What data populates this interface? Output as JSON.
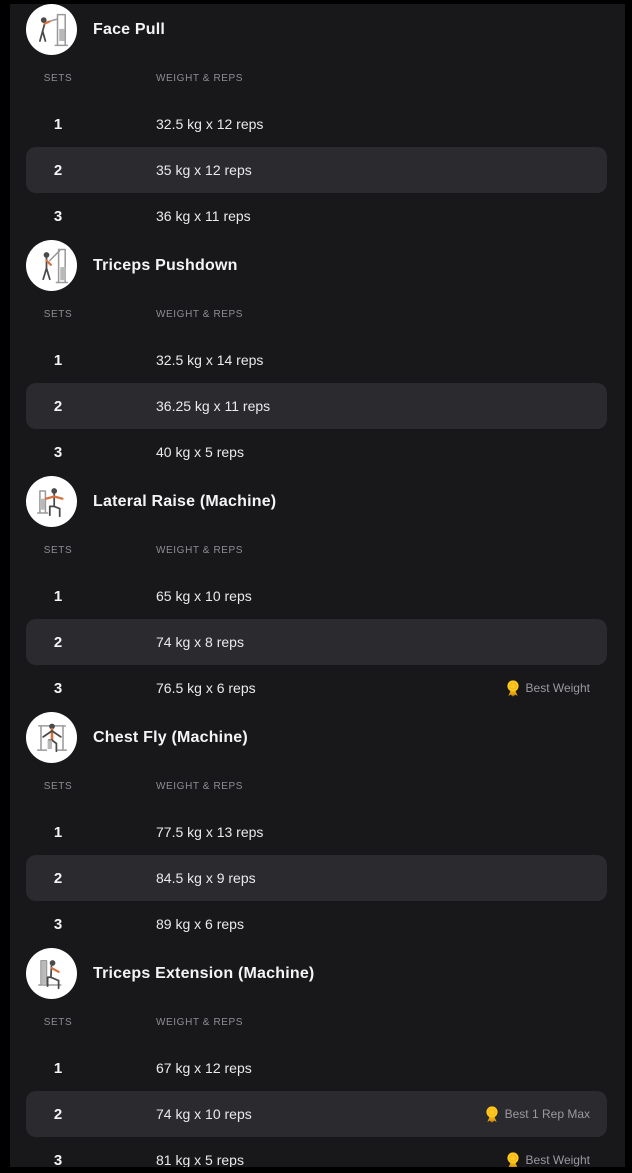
{
  "colors": {
    "frame_bg": "#000000",
    "page_bg": "#18171a",
    "row_highlight_bg": "#2b2a2e",
    "title_text": "#f4f4f5",
    "muted_text": "#8e8e93",
    "badge_text": "#9a9aa0",
    "medal_yellow": "#ffc71f"
  },
  "table_headers": {
    "sets": "SETS",
    "weight_reps": "WEIGHT & REPS"
  },
  "exercises": [
    {
      "name": "Face Pull",
      "icon": "face-pull-machine",
      "sets": [
        {
          "set": "1",
          "weight_reps": "32.5 kg x 12 reps",
          "highlighted": false,
          "badge": null
        },
        {
          "set": "2",
          "weight_reps": "35 kg x 12 reps",
          "highlighted": true,
          "badge": null
        },
        {
          "set": "3",
          "weight_reps": "36 kg x 11 reps",
          "highlighted": false,
          "badge": null
        }
      ]
    },
    {
      "name": "Triceps Pushdown",
      "icon": "triceps-pushdown-machine",
      "sets": [
        {
          "set": "1",
          "weight_reps": "32.5 kg x 14 reps",
          "highlighted": false,
          "badge": null
        },
        {
          "set": "2",
          "weight_reps": "36.25 kg x 11 reps",
          "highlighted": true,
          "badge": null
        },
        {
          "set": "3",
          "weight_reps": "40 kg x 5 reps",
          "highlighted": false,
          "badge": null
        }
      ]
    },
    {
      "name": "Lateral Raise (Machine)",
      "icon": "lateral-raise-machine",
      "sets": [
        {
          "set": "1",
          "weight_reps": "65 kg x 10 reps",
          "highlighted": false,
          "badge": null
        },
        {
          "set": "2",
          "weight_reps": "74 kg x 8 reps",
          "highlighted": true,
          "badge": null
        },
        {
          "set": "3",
          "weight_reps": "76.5 kg x 6 reps",
          "highlighted": false,
          "badge": "Best Weight"
        }
      ]
    },
    {
      "name": "Chest Fly (Machine)",
      "icon": "chest-fly-machine",
      "sets": [
        {
          "set": "1",
          "weight_reps": "77.5 kg x 13 reps",
          "highlighted": false,
          "badge": null
        },
        {
          "set": "2",
          "weight_reps": "84.5 kg x 9 reps",
          "highlighted": true,
          "badge": null
        },
        {
          "set": "3",
          "weight_reps": "89 kg x 6 reps",
          "highlighted": false,
          "badge": null
        }
      ]
    },
    {
      "name": "Triceps Extension (Machine)",
      "icon": "triceps-extension-machine",
      "sets": [
        {
          "set": "1",
          "weight_reps": "67 kg x 12 reps",
          "highlighted": false,
          "badge": null
        },
        {
          "set": "2",
          "weight_reps": "74 kg x 10 reps",
          "highlighted": true,
          "badge": "Best 1 Rep Max"
        },
        {
          "set": "3",
          "weight_reps": "81 kg x 5 reps",
          "highlighted": false,
          "badge": "Best Weight"
        }
      ]
    }
  ]
}
